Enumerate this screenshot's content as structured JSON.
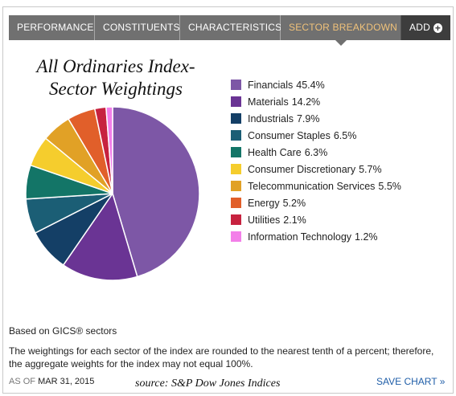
{
  "tabs": [
    {
      "label": "PERFORMANCE",
      "active": false
    },
    {
      "label": "CONSTITUENTS",
      "active": false
    },
    {
      "label": "CHARACTERISTICS",
      "active": false
    },
    {
      "label": "SECTOR BREAKDOWN",
      "active": true
    }
  ],
  "add_label": "ADD",
  "notes": {
    "basis": "Based on GICS® sectors",
    "rounding": "The weightings for each sector of the index are rounded to the nearest tenth of a percent; therefore, the aggregate weights for the index may not equal 100%.",
    "as_of_label": "AS OF",
    "as_of_date": "MAR 31, 2015",
    "source": "source:  S&P Dow Jones Indices",
    "save_chart": "SAVE CHART »"
  },
  "chart_data": {
    "type": "pie",
    "title": "All Ordinaries Index-Sector Weightings",
    "title_lines": [
      "All Ordinaries Index-",
      "Sector Weightings"
    ],
    "unit": "%",
    "legend_position": "right",
    "slices": [
      {
        "label": "Financials",
        "value": 45.4,
        "color": "#7d57a6"
      },
      {
        "label": "Materials",
        "value": 14.2,
        "color": "#6a3494"
      },
      {
        "label": "Industrials",
        "value": 7.9,
        "color": "#143f66"
      },
      {
        "label": "Consumer Staples",
        "value": 6.5,
        "color": "#1b5e75"
      },
      {
        "label": "Health Care",
        "value": 6.3,
        "color": "#137567"
      },
      {
        "label": "Consumer Discretionary",
        "value": 5.7,
        "color": "#f5cd2d"
      },
      {
        "label": "Telecommunication Services",
        "value": 5.5,
        "color": "#e1a126"
      },
      {
        "label": "Energy",
        "value": 5.2,
        "color": "#e15f2a"
      },
      {
        "label": "Utilities",
        "value": 2.1,
        "color": "#c7223f"
      },
      {
        "label": "Information Technology",
        "value": 1.2,
        "color": "#f37fe9"
      }
    ]
  }
}
